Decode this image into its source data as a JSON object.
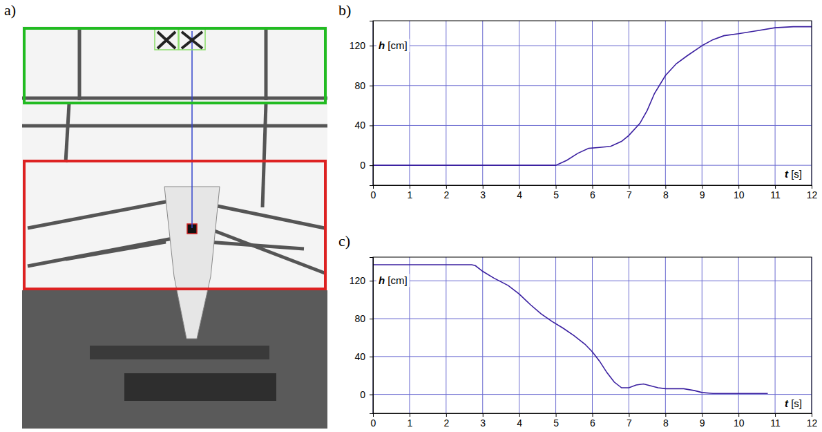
{
  "image_panel": {
    "label": "a)"
  },
  "chart_data": [
    {
      "type": "line",
      "title": "b)",
      "y_label": "h [cm]",
      "x_label": "t [s]",
      "x": [
        0,
        1,
        2,
        3,
        4,
        5.0,
        5.3,
        5.6,
        5.9,
        6.2,
        6.5,
        6.8,
        7.0,
        7.3,
        7.5,
        7.7,
        8.0,
        8.3,
        8.6,
        9.0,
        9.3,
        9.6,
        10.0,
        10.5,
        11.0,
        11.5,
        12.0
      ],
      "values": [
        0,
        0,
        0,
        0,
        0,
        0,
        5,
        12,
        17,
        18,
        19,
        24,
        30,
        42,
        55,
        72,
        90,
        102,
        110,
        120,
        126,
        130,
        132,
        135,
        138,
        139,
        139
      ],
      "color": "#3a1fa0",
      "xlim": [
        0,
        12
      ],
      "xticks": [
        0,
        1,
        2,
        3,
        4,
        5,
        6,
        7,
        8,
        9,
        10,
        11,
        12
      ],
      "ylim": [
        -20,
        145
      ],
      "yticks": [
        0,
        40,
        80,
        120
      ],
      "grid": true
    },
    {
      "type": "line",
      "title": "c)",
      "y_label": "h [cm]",
      "x_label": "t [s]",
      "x": [
        0,
        1,
        2,
        2.7,
        2.8,
        3.0,
        3.3,
        3.7,
        4.0,
        4.3,
        4.6,
        4.9,
        5.2,
        5.5,
        5.8,
        6.0,
        6.2,
        6.4,
        6.6,
        6.8,
        7.0,
        7.2,
        7.4,
        7.6,
        7.8,
        8.0,
        8.5,
        8.8,
        9.0,
        9.3,
        9.6,
        10.0,
        10.8
      ],
      "values": [
        137,
        137,
        137,
        137,
        136,
        130,
        123,
        115,
        106,
        95,
        85,
        77,
        70,
        62,
        53,
        45,
        35,
        23,
        13,
        7,
        7,
        10,
        11,
        9,
        7,
        6,
        6,
        4,
        2,
        1,
        1,
        1,
        1
      ],
      "color": "#3a1fa0",
      "xlim": [
        0,
        12
      ],
      "xticks": [
        0,
        1,
        2,
        3,
        4,
        5,
        6,
        7,
        8,
        9,
        10,
        11,
        12
      ],
      "ylim": [
        -20,
        145
      ],
      "yticks": [
        0,
        40,
        80,
        120
      ],
      "grid": true
    }
  ]
}
